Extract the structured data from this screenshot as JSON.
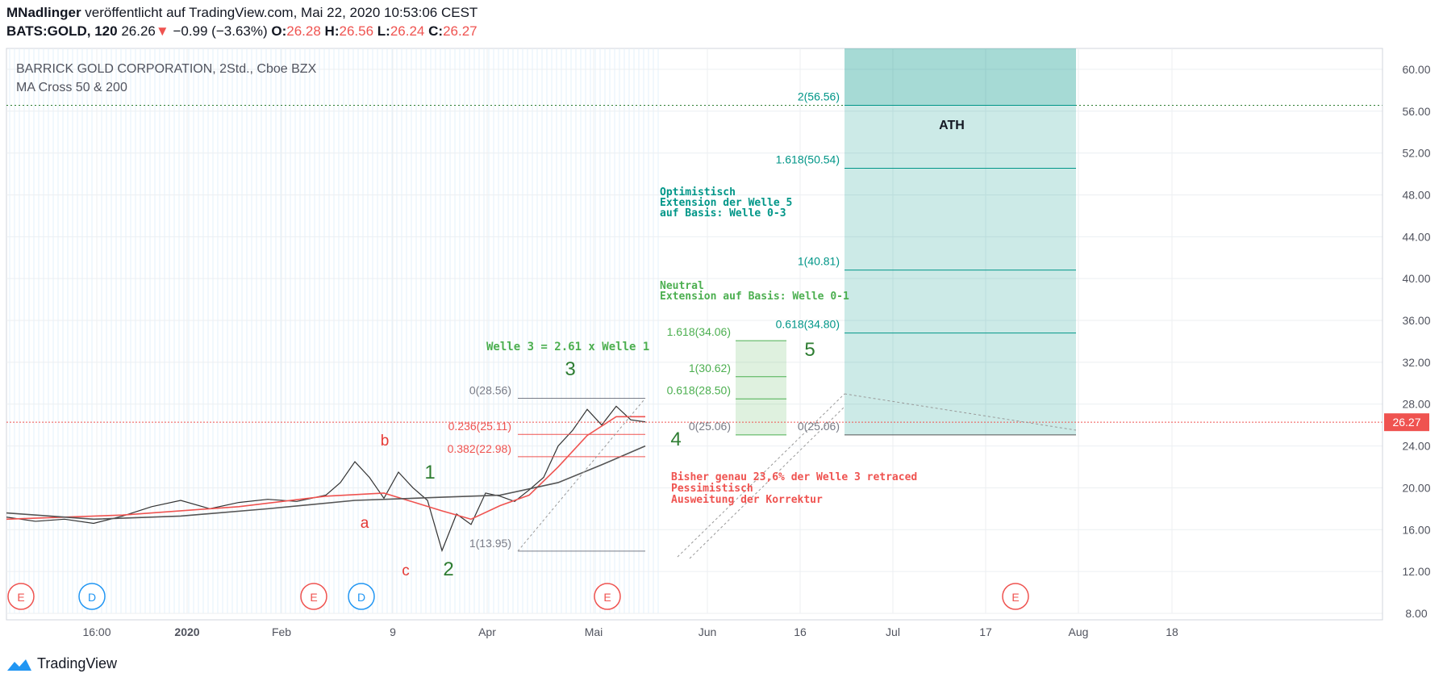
{
  "header": {
    "author": "MNadlinger",
    "published_text": "veröffentlicht auf TradingView.com, Mai 22, 2020 10:53:06 CEST",
    "symbol": "BATS:GOLD, 120",
    "last": "26.26",
    "change_arrow": "▼",
    "change": "−0.99 (−3.63%)",
    "o_label": "O:",
    "o_value": "26.28",
    "h_label": "H:",
    "h_value": "26.56",
    "l_label": "L:",
    "l_value": "26.24",
    "c_label": "C:",
    "c_value": "26.27"
  },
  "chart_data": {
    "type": "line",
    "title": "BARRICK GOLD CORPORATION, 2Std., Cboe BZX",
    "subtitle": "MA Cross 50 & 200",
    "ylim": [
      8,
      62
    ],
    "y_ticks": [
      "60.00",
      "56.00",
      "52.00",
      "48.00",
      "44.00",
      "40.00",
      "36.00",
      "32.00",
      "28.00",
      "24.00",
      "20.00",
      "16.00",
      "12.00",
      "8.00"
    ],
    "x_ticks": [
      "16:00",
      "2020",
      "Feb",
      "9",
      "Apr",
      "Mai",
      "Jun",
      "16",
      "Jul",
      "17",
      "Aug",
      "18"
    ],
    "last_price_label": "26.27",
    "price_series": {
      "x": [
        0,
        10,
        20,
        30,
        40,
        50,
        60,
        70,
        80,
        90,
        100,
        110,
        115,
        120,
        125,
        130,
        135,
        140,
        145,
        150,
        155,
        160,
        165,
        170,
        175,
        180,
        185,
        190,
        195,
        200,
        205,
        210,
        215,
        220
      ],
      "y": [
        17.2,
        16.8,
        17.0,
        16.6,
        17.3,
        18.2,
        18.8,
        18.0,
        18.6,
        18.9,
        18.7,
        19.3,
        20.5,
        22.5,
        21.0,
        19.0,
        21.5,
        20.0,
        18.8,
        14.0,
        17.5,
        16.5,
        19.5,
        19.2,
        18.7,
        19.8,
        21.0,
        24.0,
        25.5,
        27.5,
        26.0,
        27.8,
        26.5,
        26.3
      ]
    },
    "series": [
      {
        "name": "MA 50",
        "color": "#ef5350",
        "x": [
          0,
          40,
          80,
          110,
          130,
          150,
          160,
          170,
          180,
          190,
          200,
          210,
          220
        ],
        "y": [
          17.0,
          17.4,
          18.2,
          19.2,
          19.5,
          17.8,
          17.0,
          18.3,
          19.3,
          22.0,
          25.0,
          26.8,
          26.8
        ]
      },
      {
        "name": "MA 200",
        "color": "#555555",
        "x": [
          0,
          30,
          60,
          90,
          120,
          150,
          170,
          190,
          205,
          220
        ],
        "y": [
          17.6,
          17.0,
          17.3,
          18.0,
          18.8,
          19.1,
          19.3,
          20.5,
          22.2,
          24.0
        ]
      }
    ],
    "fib_retracement": {
      "levels": [
        {
          "label": "0(28.56)",
          "value": 28.56,
          "color": "#787b86"
        },
        {
          "label": "0.236(25.11)",
          "value": 25.11,
          "color": "#ef5350"
        },
        {
          "label": "0.382(22.98)",
          "value": 22.98,
          "color": "#ef5350"
        },
        {
          "label": "1(13.95)",
          "value": 13.95,
          "color": "#787b86"
        }
      ]
    },
    "fib_neutral": {
      "levels": [
        {
          "label": "1.618(34.06)",
          "value": 34.06
        },
        {
          "label": "1(30.62)",
          "value": 30.62
        },
        {
          "label": "0.618(28.50)",
          "value": 28.5
        },
        {
          "label": "0(25.06)",
          "value": 25.06
        }
      ]
    },
    "fib_optimistic": {
      "levels": [
        {
          "label": "2(56.56)",
          "value": 56.56
        },
        {
          "label": "1.618(50.54)",
          "value": 50.54
        },
        {
          "label": "1(40.81)",
          "value": 40.81
        },
        {
          "label": "0.618(34.80)",
          "value": 34.8
        },
        {
          "label": "0(25.06)",
          "value": 25.06
        }
      ]
    },
    "ath_value": 56.56,
    "ath_label": "ATH",
    "wave_labels": [
      {
        "text": "a",
        "color": "#e53935"
      },
      {
        "text": "b",
        "color": "#e53935"
      },
      {
        "text": "c",
        "color": "#e53935"
      },
      {
        "text": "1",
        "color": "#2e7d32"
      },
      {
        "text": "2",
        "color": "#2e7d32"
      },
      {
        "text": "3",
        "color": "#2e7d32"
      },
      {
        "text": "4",
        "color": "#2e7d32"
      },
      {
        "text": "5",
        "color": "#2e7d32"
      }
    ],
    "annotations": {
      "welle3": "Welle 3 = 2.61 x Welle 1",
      "optimistic": [
        "Optimistisch",
        "Extension der Welle 5",
        "auf Basis: Welle 0-3"
      ],
      "neutral": [
        "Neutral",
        "Extension auf Basis: Welle 0-1"
      ],
      "pessimistic": [
        "Bisher genau 23,6% der Welle 3 retraced",
        "Pessimistisch",
        "Ausweitung der Korrektur"
      ]
    },
    "event_markers": [
      "E",
      "D",
      "E",
      "D",
      "E",
      "E"
    ]
  },
  "footer": {
    "brand": "TradingView"
  },
  "colors": {
    "teal": "#009688",
    "green": "#4caf50",
    "red": "#ef5350",
    "blue": "#2196f3"
  }
}
